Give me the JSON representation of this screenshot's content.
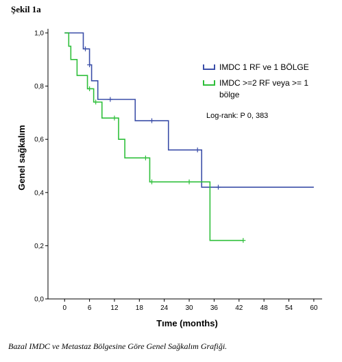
{
  "figure_label": "Şekil 1a",
  "caption": "Bazal IMDC ve Metastaz Bölgesine Göre Genel Sağkalım Grafiği.",
  "log_rank": "Log-rank: P 0, 383",
  "colors": {
    "series1": "#3b4ea8",
    "series2": "#2ebf3a"
  },
  "chart_data": {
    "type": "line",
    "subtype": "kaplan-meier-step",
    "title": "",
    "xlabel": "Tıme (months)",
    "ylabel": "Genel sağkalım",
    "xlim": [
      -4,
      62
    ],
    "ylim": [
      0,
      1.0
    ],
    "x_ticks": [
      0,
      6,
      12,
      18,
      24,
      30,
      36,
      42,
      48,
      54,
      60
    ],
    "y_ticks": [
      0.0,
      0.2,
      0.4,
      0.6,
      0.8,
      1.0
    ],
    "y_tick_labels": [
      "0,0",
      "0,2",
      "0,4",
      "0,6",
      "0,8",
      "1,0"
    ],
    "grid": false,
    "legend_position": "top-right",
    "series": [
      {
        "name": "IMDC 1 RF ve 1 BÖLGE",
        "steps": [
          [
            0,
            1.0
          ],
          [
            4.5,
            0.94
          ],
          [
            6,
            0.88
          ],
          [
            6.5,
            0.82
          ],
          [
            8,
            0.75
          ],
          [
            17,
            0.67
          ],
          [
            25,
            0.56
          ],
          [
            33,
            0.42
          ],
          [
            60,
            0.42
          ]
        ],
        "censored": [
          [
            5,
            0.94
          ],
          [
            6,
            0.88
          ],
          [
            11,
            0.75
          ],
          [
            21,
            0.67
          ],
          [
            32,
            0.56
          ],
          [
            37,
            0.42
          ]
        ]
      },
      {
        "name": "IMDC >=2 RF veya >= 1 bölge",
        "name_lines": [
          "IMDC >=2 RF veya >= 1",
          "bölge"
        ],
        "steps": [
          [
            0,
            1.0
          ],
          [
            1,
            0.95
          ],
          [
            1.5,
            0.9
          ],
          [
            3,
            0.84
          ],
          [
            5.5,
            0.79
          ],
          [
            6,
            0.79
          ],
          [
            7,
            0.74
          ],
          [
            9,
            0.68
          ],
          [
            13,
            0.6
          ],
          [
            14.5,
            0.53
          ],
          [
            20.5,
            0.44
          ],
          [
            35,
            0.22
          ],
          [
            43,
            0.22
          ]
        ],
        "censored": [
          [
            6,
            0.79
          ],
          [
            7.5,
            0.74
          ],
          [
            12,
            0.68
          ],
          [
            19.5,
            0.53
          ],
          [
            21,
            0.44
          ],
          [
            30,
            0.44
          ],
          [
            43,
            0.22
          ]
        ]
      }
    ]
  }
}
